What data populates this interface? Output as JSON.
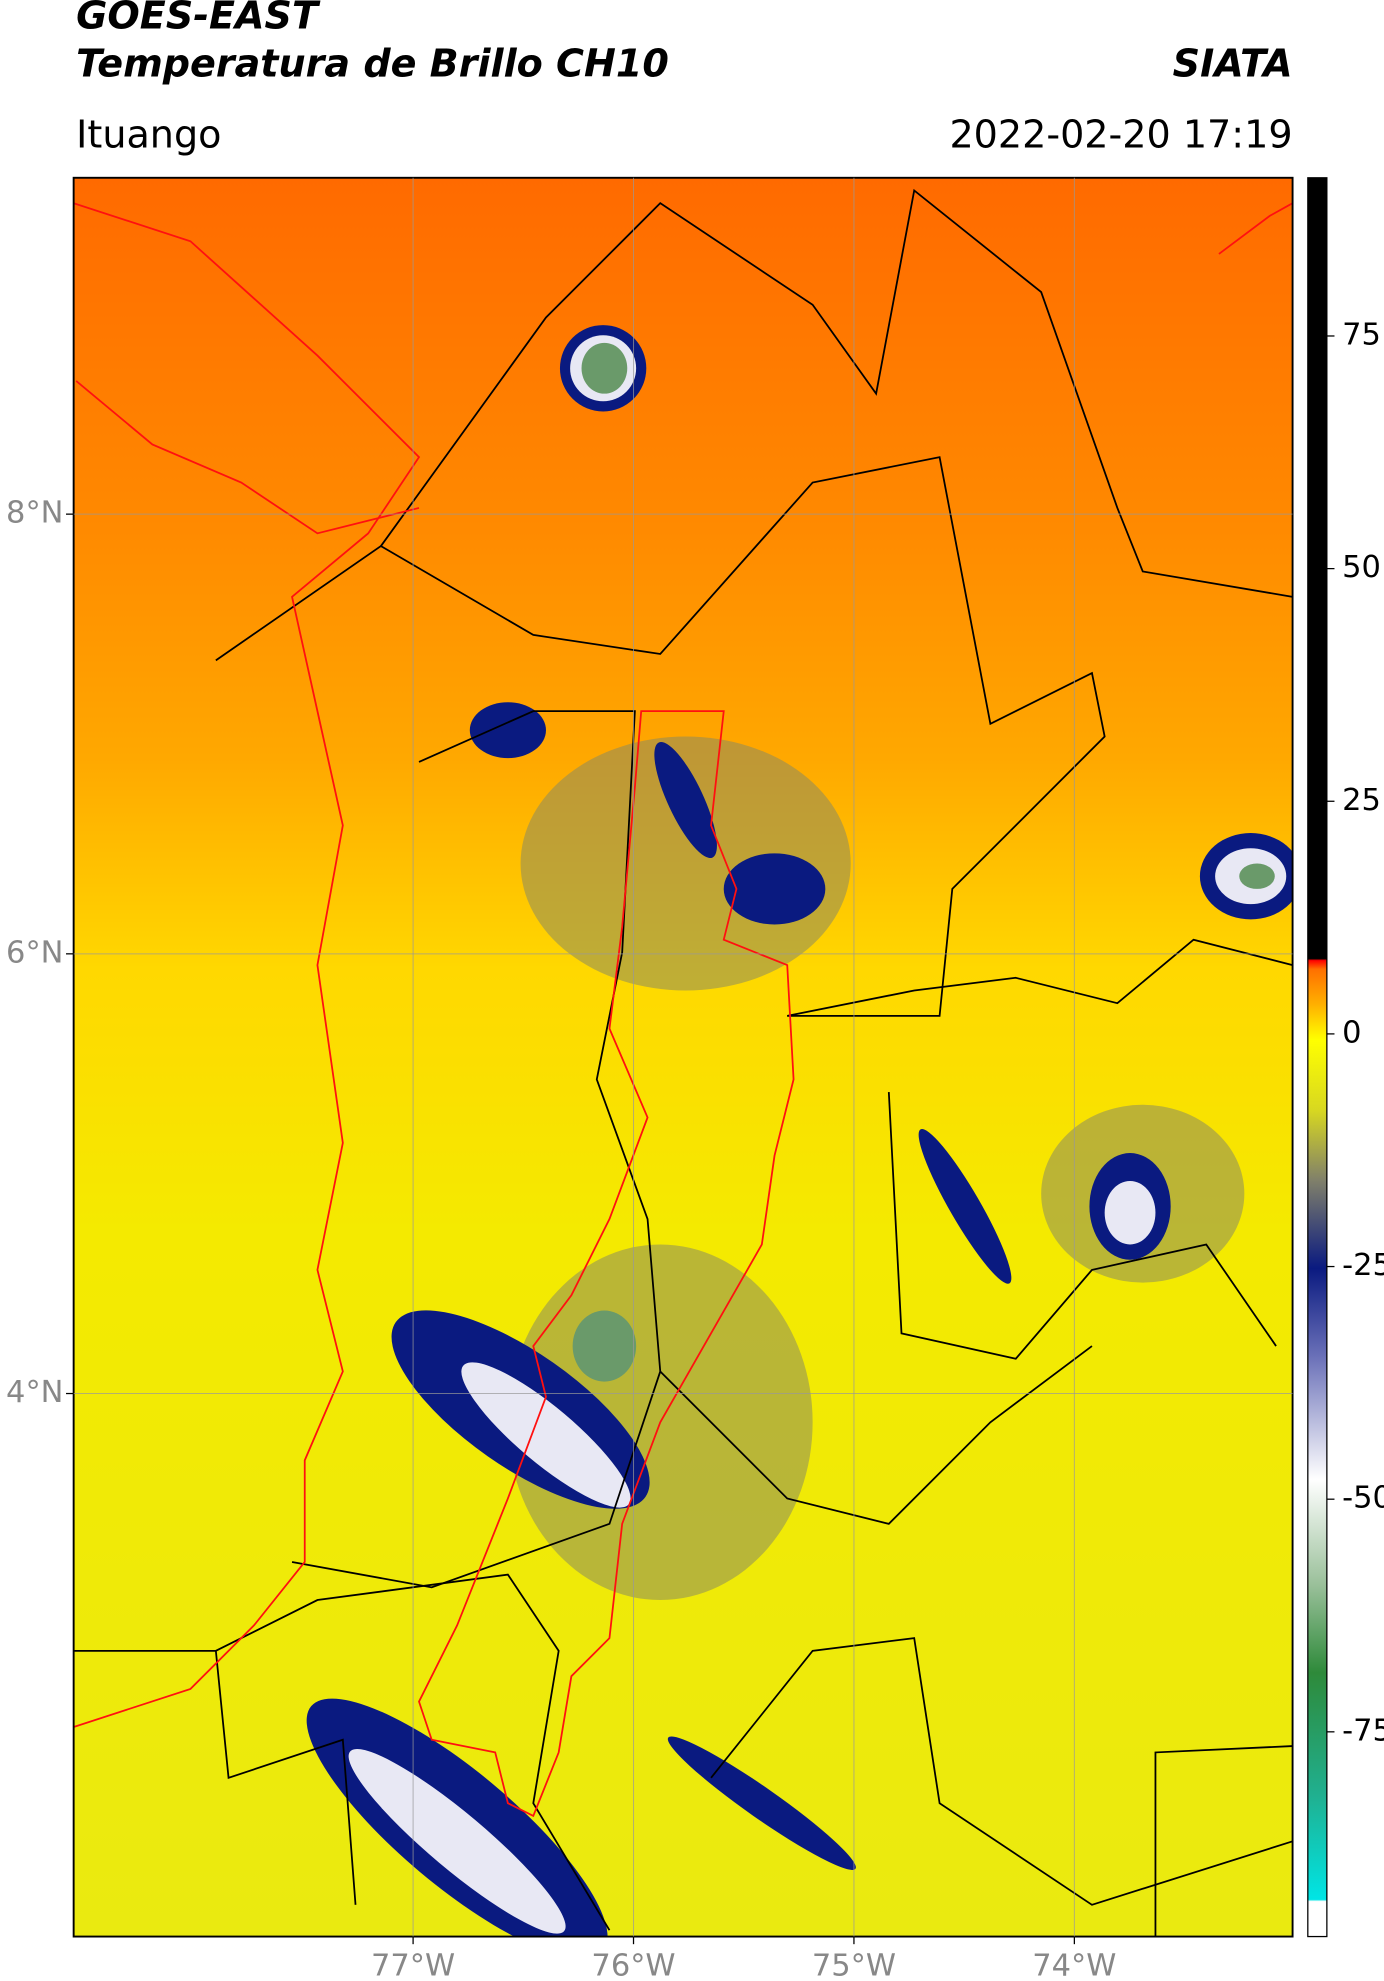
{
  "header": {
    "title": "GOES-EAST",
    "subtitle": "Temperatura de Brillo CH10",
    "organization": "SIATA",
    "location": "Ituango",
    "datetime": "2022-02-20 17:19"
  },
  "map": {
    "xlim": [
      -78.54,
      -73.01
    ],
    "ylim": [
      1.53,
      9.53
    ],
    "xticks": [
      {
        "value": -77,
        "label": "77°W"
      },
      {
        "value": -76,
        "label": "76°W"
      },
      {
        "value": -75,
        "label": "75°W"
      },
      {
        "value": -74,
        "label": "74°W"
      }
    ],
    "yticks": [
      {
        "value": 8,
        "label": "8°N"
      },
      {
        "value": 6,
        "label": "6°N"
      },
      {
        "value": 4,
        "label": "4°N"
      }
    ],
    "grid": true
  },
  "colorbar": {
    "lim": [
      -97,
      92
    ],
    "ticks": [
      75,
      50,
      25,
      0,
      -25,
      -50,
      -75
    ]
  }
}
